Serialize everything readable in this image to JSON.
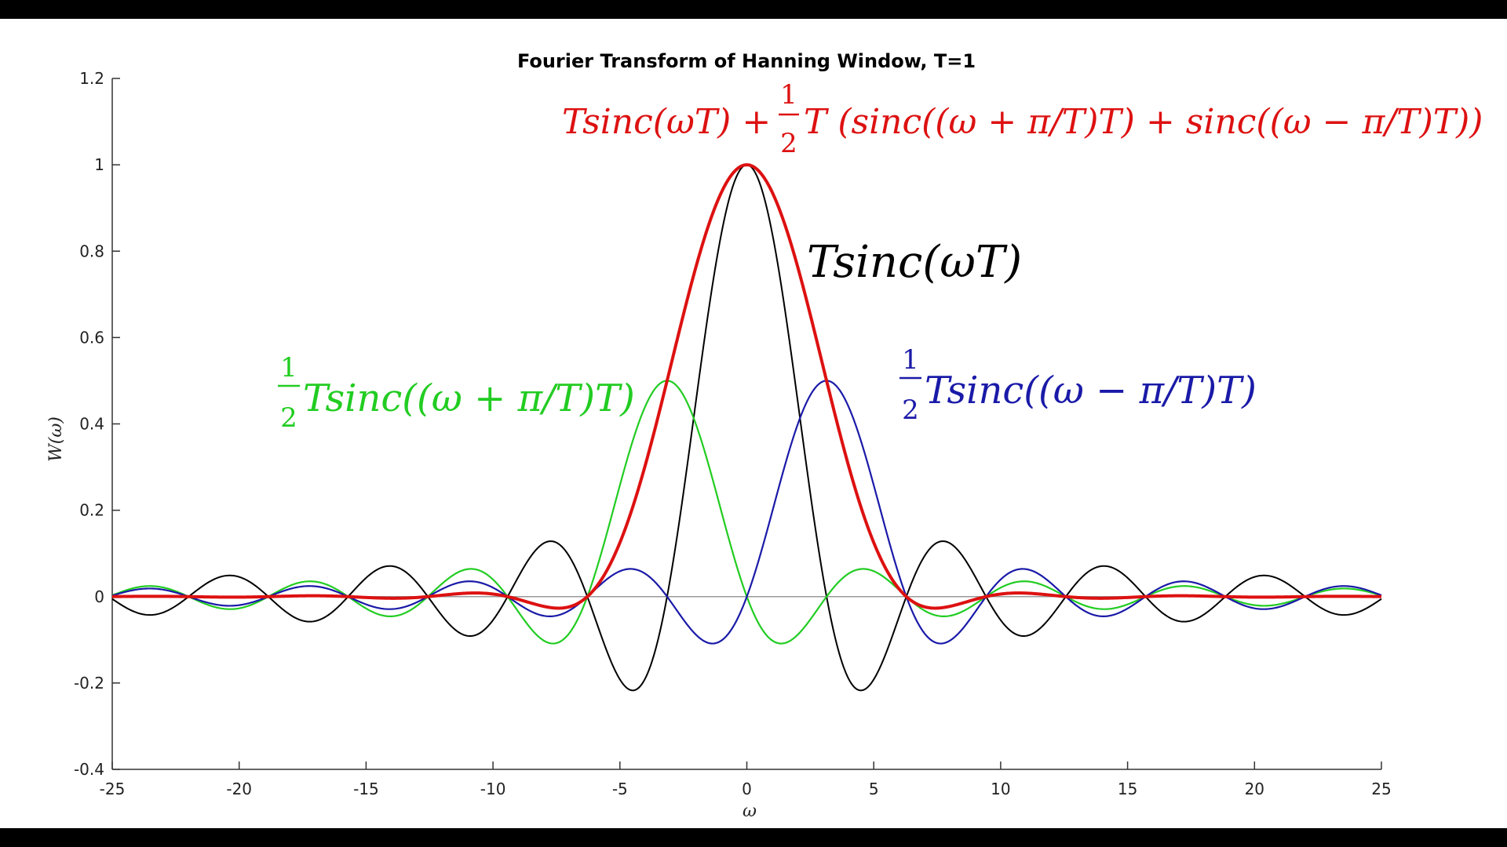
{
  "chart_data": {
    "type": "line",
    "title": "Fourier Transform of Hanning Window,  T=1",
    "xlabel": "ω",
    "ylabel": "W(ω)",
    "xlim": [
      -25,
      25
    ],
    "ylim": [
      -0.4,
      1.2
    ],
    "x_ticks": [
      "-25",
      "-20",
      "-15",
      "-10",
      "-5",
      "0",
      "5",
      "10",
      "15",
      "20",
      "25"
    ],
    "y_ticks": [
      "1.2",
      "1",
      "0.8",
      "0.6",
      "0.4",
      "0.2",
      "0",
      "-0.2",
      "-0.4"
    ],
    "T": 1,
    "sample_step": 0.05,
    "series": [
      {
        "name": "T sinc(ωT)",
        "color": "#000000",
        "formula": "T*sinc(w*T)",
        "label": {
          "prefix": "",
          "main": "Tsinc(ωT)"
        }
      },
      {
        "name": "1/2 T sinc((ω + π/T)T)",
        "color": "#22cc22",
        "formula": "0.5*T*sinc((w+pi/T)*T)",
        "label": {
          "num": "1",
          "den": "2",
          "main": "Tsinc((ω + π/T)T)"
        }
      },
      {
        "name": "1/2 T sinc((ω − π/T)T)",
        "color": "#1a1aa8",
        "formula": "0.5*T*sinc((w-pi/T)*T)",
        "label": {
          "num": "1",
          "den": "2",
          "main": "Tsinc((ω − π/T)T)"
        }
      },
      {
        "name": "Hanning sum",
        "color": "#dd1111",
        "formula": "T*sinc(w*T) + 0.5*T*(sinc((w+pi/T)*T) + sinc((w-pi/T)*T))",
        "label": {
          "left": "Tsinc(ωT) +",
          "num": "1",
          "den": "2",
          "right": "T (sinc((ω + π/T)T) + sinc((ω − π/T)T))"
        }
      }
    ]
  }
}
